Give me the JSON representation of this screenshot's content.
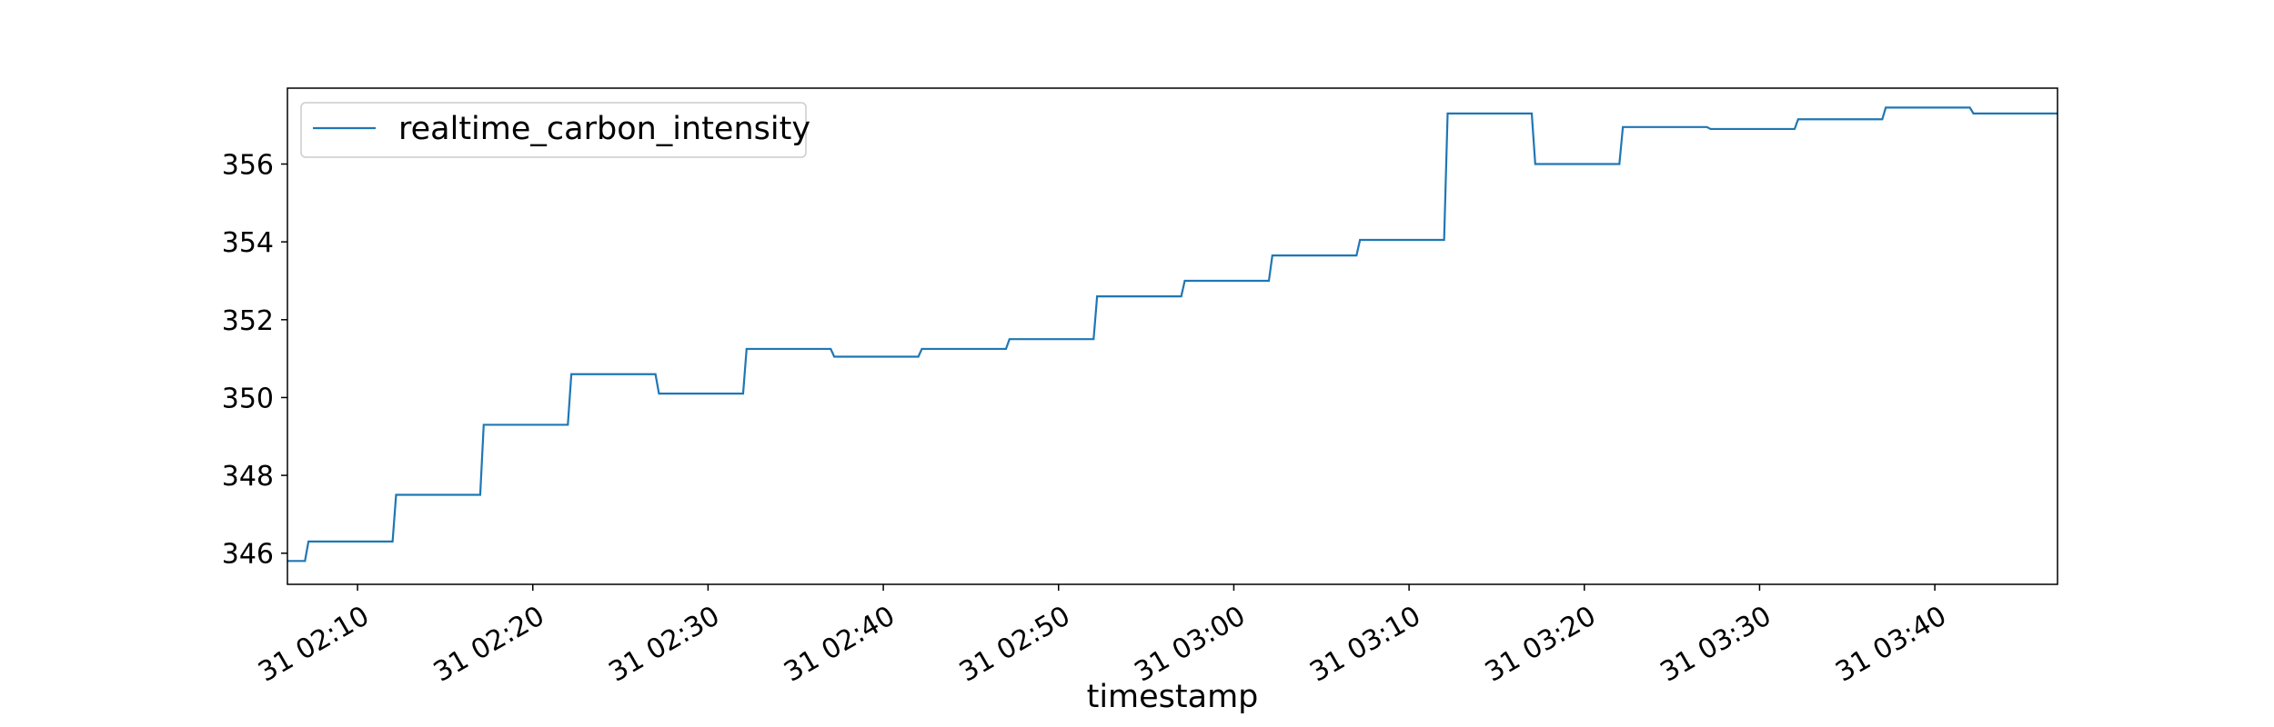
{
  "chart_data": {
    "type": "line",
    "title": "",
    "xlabel": "timestamp",
    "ylabel": "",
    "x_tick_labels": [
      "31 02:10",
      "31 02:20",
      "31 02:30",
      "31 02:40",
      "31 02:50",
      "31 03:00",
      "31 03:10",
      "31 03:20",
      "31 03:30",
      "31 03:40"
    ],
    "y_ticks": [
      346,
      348,
      350,
      352,
      354,
      356
    ],
    "xlim": [
      "02:06",
      "03:47"
    ],
    "ylim": [
      345.2,
      357.95
    ],
    "grid": false,
    "legend_position": "upper-left",
    "x_ticks_rotated": true,
    "series": [
      {
        "name": "realtime_carbon_intensity",
        "color": "#1f77b4",
        "drawstyle": "step",
        "x": [
          "02:06",
          "02:07",
          "02:12",
          "02:17",
          "02:22",
          "02:27",
          "02:32",
          "02:37",
          "02:42",
          "02:47",
          "02:52",
          "02:57",
          "03:02",
          "03:07",
          "03:12",
          "03:17",
          "03:22",
          "03:27",
          "03:32",
          "03:37",
          "03:42"
        ],
        "values": [
          345.8,
          346.3,
          347.5,
          349.3,
          350.6,
          350.1,
          351.25,
          351.05,
          351.25,
          351.5,
          352.6,
          353.0,
          353.65,
          354.05,
          357.3,
          356.0,
          356.95,
          356.9,
          357.15,
          357.45,
          357.3
        ]
      }
    ]
  }
}
